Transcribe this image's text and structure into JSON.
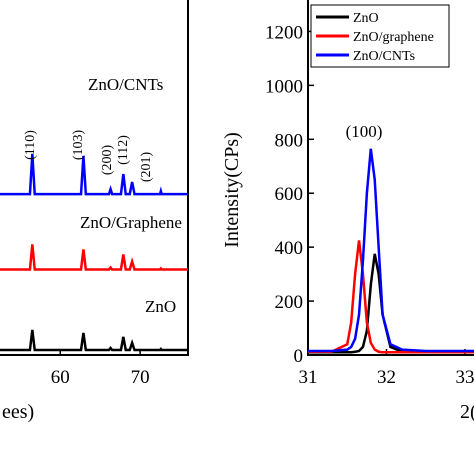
{
  "chart_data": [
    {
      "type": "line",
      "x_label": "ees)",
      "x": [
        52.2,
        56.2,
        56.5,
        56.8,
        62.6,
        62.9,
        63.2,
        66.1,
        66.3,
        66.5,
        67.6,
        67.9,
        68.2,
        68.7,
        69.0,
        69.3,
        72.5,
        72.6,
        72.7,
        76
      ],
      "xlim": [
        52.2,
        76
      ],
      "xticks": [
        60,
        70
      ],
      "ylim": [
        0,
        355
      ],
      "series": [
        {
          "name": "ZnO/CNTs",
          "color": "#0000ff",
          "values": [
            160,
            160,
            200,
            160,
            160,
            198,
            160,
            160,
            165,
            160,
            160,
            180,
            160,
            160,
            172,
            160,
            160,
            163,
            160,
            160
          ]
        },
        {
          "name": "ZnO/Graphene",
          "color": "#ff0000",
          "values": [
            85,
            85,
            110,
            85,
            85,
            105,
            85,
            85,
            87,
            85,
            85,
            100,
            85,
            85,
            93,
            85,
            85,
            86,
            85,
            85
          ]
        },
        {
          "name": "ZnO",
          "color": "#000000",
          "values": [
            5,
            5,
            25,
            5,
            5,
            22,
            5,
            5,
            7,
            5,
            5,
            18,
            5,
            5,
            12,
            5,
            5,
            6,
            5,
            5
          ]
        }
      ],
      "annotations": [
        "(110)",
        "(103)",
        "(200)",
        "(112)",
        "(201)"
      ]
    },
    {
      "type": "line",
      "x_label": "2(",
      "y_label": "Intensity(CPs)",
      "x": [
        31,
        31.3,
        31.5,
        31.55,
        31.6,
        31.65,
        31.7,
        31.75,
        31.8,
        31.85,
        31.9,
        31.95,
        32.05,
        32.2,
        32.5,
        33.14
      ],
      "xlim": [
        31,
        33.14
      ],
      "xticks": [
        31,
        32,
        33
      ],
      "ylim": [
        0,
        1324
      ],
      "yticks": [
        0,
        200,
        400,
        600,
        800,
        1000,
        1200
      ],
      "legend": "upper left",
      "annotation": "(100)",
      "series": [
        {
          "name": "ZnO",
          "color": "#000000",
          "values": [
            10,
            10,
            10,
            10,
            12,
            15,
            30,
            90,
            260,
            375,
            300,
            150,
            30,
            12,
            10,
            10
          ]
        },
        {
          "name": "ZnO/graphene",
          "color": "#ff0000",
          "values": [
            12,
            12,
            40,
            120,
            300,
            425,
            300,
            120,
            45,
            20,
            12,
            10,
            10,
            10,
            10,
            10
          ]
        },
        {
          "name": "ZnO/CNTs",
          "color": "#0000ff",
          "values": [
            15,
            15,
            20,
            30,
            60,
            150,
            350,
            600,
            765,
            650,
            400,
            150,
            40,
            20,
            15,
            15
          ]
        }
      ]
    }
  ]
}
